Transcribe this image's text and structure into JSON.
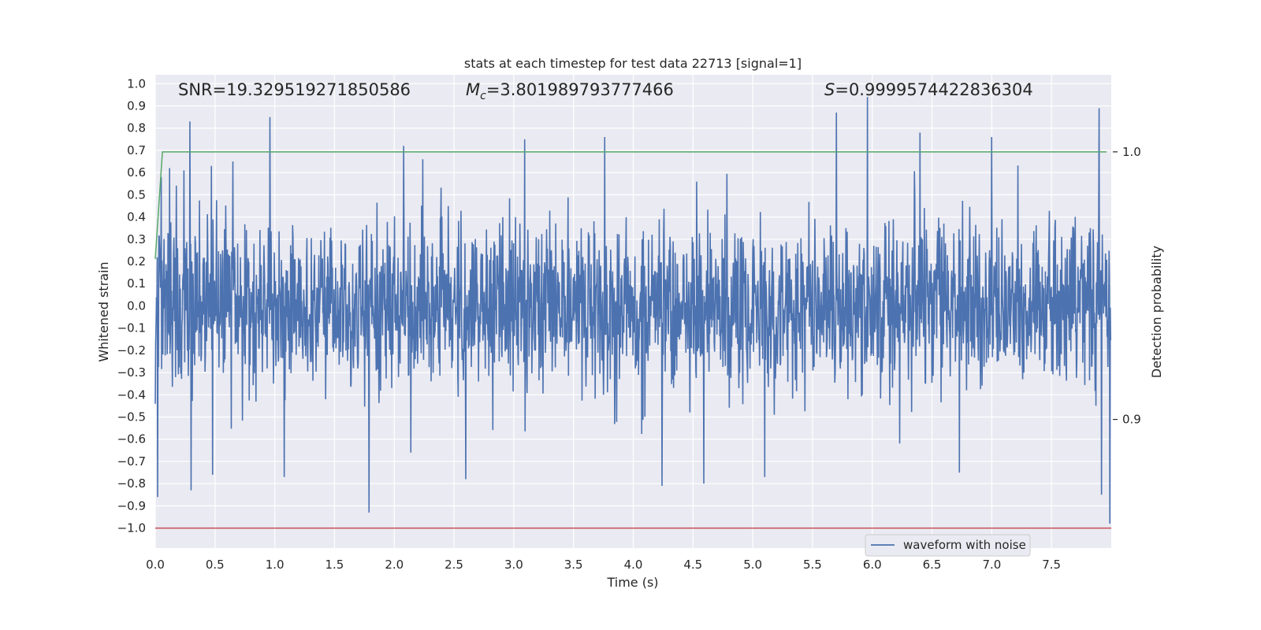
{
  "chart_data": {
    "type": "line",
    "title": "stats at each timestep for test data 22713 [signal=1]",
    "xlabel": "Time (s)",
    "ylabel": "Whitened strain",
    "ylabel_right": "Detection probability",
    "xlim": [
      0.0,
      8.0
    ],
    "ylim": [
      -1.09,
      1.04
    ],
    "ylim_right": [
      0.8519,
      1.0288
    ],
    "x_ticks": [
      0.0,
      0.5,
      1.0,
      1.5,
      2.0,
      2.5,
      3.0,
      3.5,
      4.0,
      4.5,
      5.0,
      5.5,
      6.0,
      6.5,
      7.0,
      7.5
    ],
    "x_tick_labels": [
      "0.0",
      "0.5",
      "1.0",
      "1.5",
      "2.0",
      "2.5",
      "3.0",
      "3.5",
      "4.0",
      "4.5",
      "5.0",
      "5.5",
      "6.0",
      "6.5",
      "7.0",
      "7.5"
    ],
    "y_ticks": [
      1.0,
      0.9,
      0.8,
      0.7,
      0.6,
      0.5,
      0.4,
      0.3,
      0.2,
      0.1,
      0.0,
      -0.1,
      -0.2,
      -0.3,
      -0.4,
      -0.5,
      -0.6,
      -0.7,
      -0.8,
      -0.9,
      -1.0
    ],
    "y_tick_labels": [
      "1.0",
      "0.9",
      "0.8",
      "0.7",
      "0.6",
      "0.5",
      "0.4",
      "0.3",
      "0.2",
      "0.1",
      "0.0",
      "−0.1",
      "−0.2",
      "−0.3",
      "−0.4",
      "−0.5",
      "−0.6",
      "−0.7",
      "−0.8",
      "−0.9",
      "−1.0"
    ],
    "y_right_ticks": [
      1.0,
      0.9
    ],
    "y_right_tick_labels": [
      "1.0",
      "0.9"
    ],
    "grid": true,
    "legend": {
      "placement": "lower right",
      "entries": [
        "waveform with noise"
      ]
    },
    "annotations": {
      "snr": "SNR=19.329519271850586",
      "mc_symbol": "M",
      "mc_sub": "c",
      "mc_value": "=3.801989793777466",
      "s_symbol": "S",
      "s_value": "=0.9999574422836304"
    },
    "series": [
      {
        "name": "waveform with noise",
        "color": "#4c72b0",
        "axis": "left",
        "sample_rate_hz": 2048,
        "amplitude_envelope": 0.45,
        "peaks": [
          {
            "x": 0.02,
            "y": -0.86
          },
          {
            "x": 0.05,
            "y": 0.58
          },
          {
            "x": 0.12,
            "y": 0.62
          },
          {
            "x": 0.24,
            "y": 0.61
          },
          {
            "x": 0.29,
            "y": 0.83
          },
          {
            "x": 0.3,
            "y": -0.83
          },
          {
            "x": 0.47,
            "y": 0.63
          },
          {
            "x": 0.48,
            "y": -0.76
          },
          {
            "x": 0.65,
            "y": 0.65
          },
          {
            "x": 0.96,
            "y": 0.85
          },
          {
            "x": 1.08,
            "y": -0.77
          },
          {
            "x": 1.79,
            "y": -0.93
          },
          {
            "x": 2.08,
            "y": 0.72
          },
          {
            "x": 2.24,
            "y": 0.66
          },
          {
            "x": 2.6,
            "y": -0.78
          },
          {
            "x": 3.09,
            "y": 0.75
          },
          {
            "x": 3.76,
            "y": 0.76
          },
          {
            "x": 4.24,
            "y": -0.81
          },
          {
            "x": 4.59,
            "y": 0.7
          },
          {
            "x": 4.59,
            "y": -0.8
          },
          {
            "x": 5.1,
            "y": -0.77
          },
          {
            "x": 5.7,
            "y": 0.87
          },
          {
            "x": 5.96,
            "y": 0.94
          },
          {
            "x": 6.4,
            "y": 0.78
          },
          {
            "x": 6.73,
            "y": -0.75
          },
          {
            "x": 7.0,
            "y": 0.76
          },
          {
            "x": 7.9,
            "y": 0.89
          },
          {
            "x": 7.92,
            "y": -0.85
          },
          {
            "x": 7.99,
            "y": -0.98
          }
        ]
      },
      {
        "name": "",
        "color": "#55a868",
        "axis": "right",
        "x": [
          0.0,
          0.06,
          8.0
        ],
        "y": [
          0.96,
          1.0,
          1.0
        ]
      },
      {
        "name": "",
        "color": "#c44e52",
        "axis": "left",
        "x": [
          0.0,
          8.0
        ],
        "y": [
          -1.0,
          -1.0
        ]
      }
    ]
  }
}
